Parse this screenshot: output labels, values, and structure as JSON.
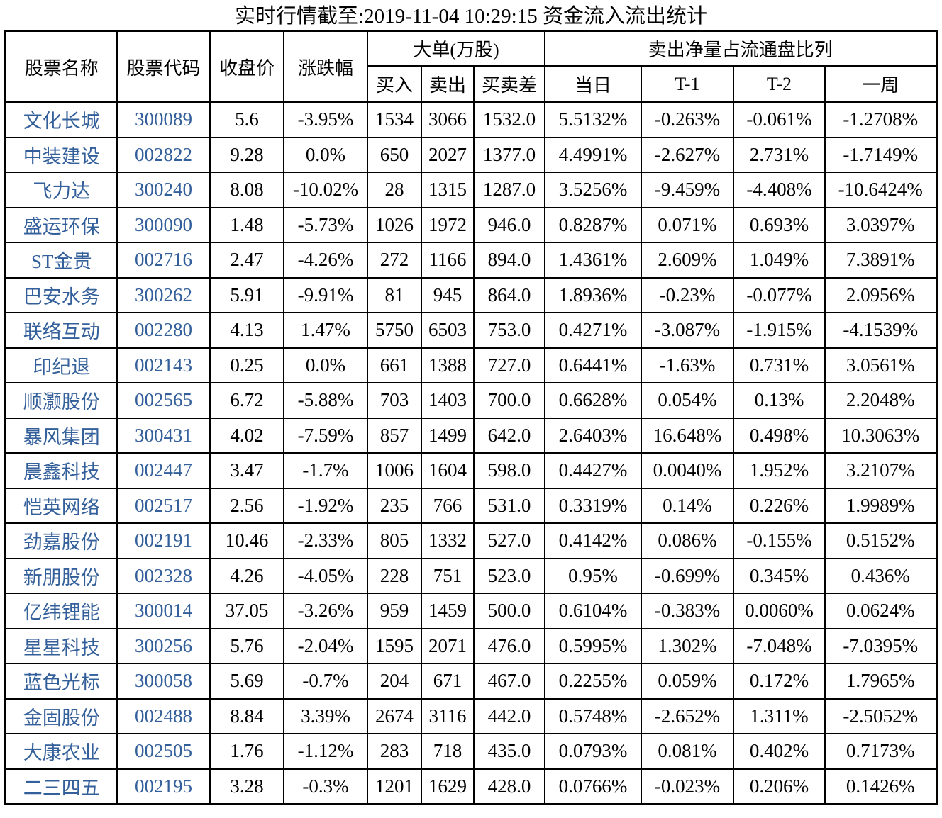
{
  "title": "实时行情截至:2019-11-04 10:29:15 资金流入流出统计",
  "colors": {
    "stock_link_blue": "#335f9a",
    "border": "#000000",
    "text": "#000000",
    "background": "#ffffff"
  },
  "table": {
    "headers": {
      "stock_name": "股票名称",
      "stock_code": "股票代码",
      "close_price": "收盘价",
      "change_pct": "涨跌幅",
      "big_order_group": "大单(万股)",
      "buy": "买入",
      "sell": "卖出",
      "buy_sell_diff": "买卖差",
      "net_sell_ratio_group": "卖出净量占流通盘比列",
      "day": "当日",
      "t1": "T-1",
      "t2": "T-2",
      "week": "一周"
    },
    "rows": [
      [
        "文化长城",
        "300089",
        "5.6",
        "-3.95%",
        "1534",
        "3066",
        "1532.0",
        "5.5132%",
        "-0.263%",
        "-0.061%",
        "-1.2708%"
      ],
      [
        "中装建设",
        "002822",
        "9.28",
        "0.0%",
        "650",
        "2027",
        "1377.0",
        "4.4991%",
        "-2.627%",
        "2.731%",
        "-1.7149%"
      ],
      [
        "飞力达",
        "300240",
        "8.08",
        "-10.02%",
        "28",
        "1315",
        "1287.0",
        "3.5256%",
        "-9.459%",
        "-4.408%",
        "-10.6424%"
      ],
      [
        "盛运环保",
        "300090",
        "1.48",
        "-5.73%",
        "1026",
        "1972",
        "946.0",
        "0.8287%",
        "0.071%",
        "0.693%",
        "3.0397%"
      ],
      [
        "ST金贵",
        "002716",
        "2.47",
        "-4.26%",
        "272",
        "1166",
        "894.0",
        "1.4361%",
        "2.609%",
        "1.049%",
        "7.3891%"
      ],
      [
        "巴安水务",
        "300262",
        "5.91",
        "-9.91%",
        "81",
        "945",
        "864.0",
        "1.8936%",
        "-0.23%",
        "-0.077%",
        "2.0956%"
      ],
      [
        "联络互动",
        "002280",
        "4.13",
        "1.47%",
        "5750",
        "6503",
        "753.0",
        "0.4271%",
        "-3.087%",
        "-1.915%",
        "-4.1539%"
      ],
      [
        "印纪退",
        "002143",
        "0.25",
        "0.0%",
        "661",
        "1388",
        "727.0",
        "0.6441%",
        "-1.63%",
        "0.731%",
        "3.0561%"
      ],
      [
        "顺灏股份",
        "002565",
        "6.72",
        "-5.88%",
        "703",
        "1403",
        "700.0",
        "0.6628%",
        "0.054%",
        "0.13%",
        "2.2048%"
      ],
      [
        "暴风集团",
        "300431",
        "4.02",
        "-7.59%",
        "857",
        "1499",
        "642.0",
        "2.6403%",
        "16.648%",
        "0.498%",
        "10.3063%"
      ],
      [
        "晨鑫科技",
        "002447",
        "3.47",
        "-1.7%",
        "1006",
        "1604",
        "598.0",
        "0.4427%",
        "0.0040%",
        "1.952%",
        "3.2107%"
      ],
      [
        "恺英网络",
        "002517",
        "2.56",
        "-1.92%",
        "235",
        "766",
        "531.0",
        "0.3319%",
        "0.14%",
        "0.226%",
        "1.9989%"
      ],
      [
        "劲嘉股份",
        "002191",
        "10.46",
        "-2.33%",
        "805",
        "1332",
        "527.0",
        "0.4142%",
        "0.086%",
        "-0.155%",
        "0.5152%"
      ],
      [
        "新朋股份",
        "002328",
        "4.26",
        "-4.05%",
        "228",
        "751",
        "523.0",
        "0.95%",
        "-0.699%",
        "0.345%",
        "0.436%"
      ],
      [
        "亿纬锂能",
        "300014",
        "37.05",
        "-3.26%",
        "959",
        "1459",
        "500.0",
        "0.6104%",
        "-0.383%",
        "0.0060%",
        "0.0624%"
      ],
      [
        "星星科技",
        "300256",
        "5.76",
        "-2.04%",
        "1595",
        "2071",
        "476.0",
        "0.5995%",
        "1.302%",
        "-7.048%",
        "-7.0395%"
      ],
      [
        "蓝色光标",
        "300058",
        "5.69",
        "-0.7%",
        "204",
        "671",
        "467.0",
        "0.2255%",
        "0.059%",
        "0.172%",
        "1.7965%"
      ],
      [
        "金固股份",
        "002488",
        "8.84",
        "3.39%",
        "2674",
        "3116",
        "442.0",
        "0.5748%",
        "-2.652%",
        "1.311%",
        "-2.5052%"
      ],
      [
        "大康农业",
        "002505",
        "1.76",
        "-1.12%",
        "283",
        "718",
        "435.0",
        "0.0793%",
        "0.081%",
        "0.402%",
        "0.7173%"
      ],
      [
        "二三四五",
        "002195",
        "3.28",
        "-0.3%",
        "1201",
        "1629",
        "428.0",
        "0.0766%",
        "-0.023%",
        "0.206%",
        "0.1426%"
      ]
    ]
  }
}
